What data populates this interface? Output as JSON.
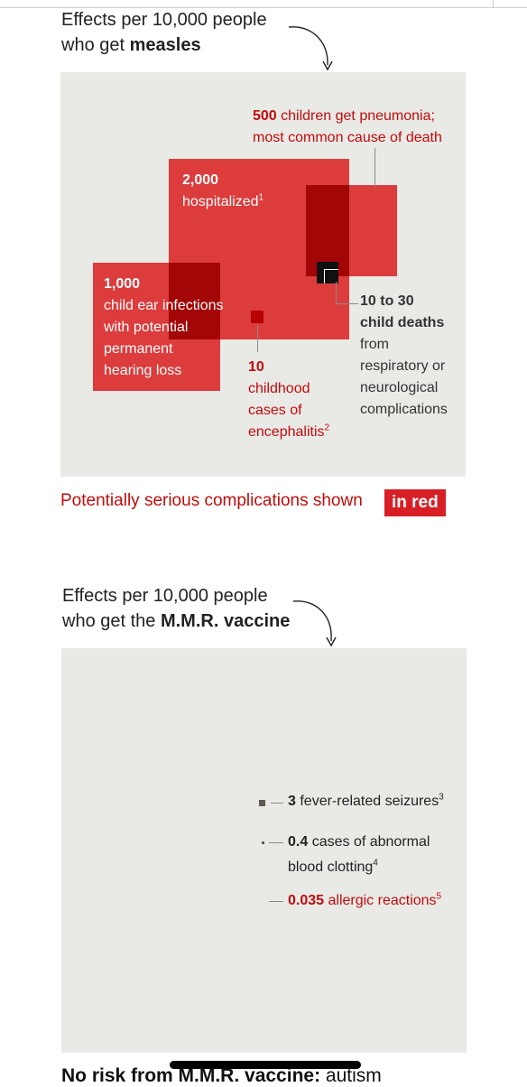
{
  "measles": {
    "heading_line1": "Effects per 10,000 people",
    "heading_line2_prefix": "who get ",
    "heading_line2_bold": "measles",
    "hospitalized": {
      "value": "2,000",
      "text": "hospitalized",
      "footnote": "1"
    },
    "pneumonia": {
      "value": "500",
      "text_line1": " children get pneumonia;",
      "text_line2": "most common cause of death"
    },
    "ear_infections": {
      "value": "1,000",
      "lines": [
        "child ear infections",
        "with potential",
        "permanent",
        "hearing loss"
      ]
    },
    "encephalitis": {
      "value": "10",
      "lines": [
        "childhood",
        "cases of",
        "encephalitis"
      ],
      "footnote": "2"
    },
    "deaths": {
      "value_line1": "10 to 30",
      "value_line2": "child deaths",
      "lines": [
        "from",
        "respiratory or",
        "neurological",
        "complications"
      ]
    },
    "legend_text": "Potentially serious complications shown",
    "legend_box": "in red"
  },
  "vaccine": {
    "heading_line1": "Effects per 10,000 people",
    "heading_line2_prefix": "who get the ",
    "heading_line2_bold": "M.M.R. vaccine",
    "seizures": {
      "value": "3",
      "text": " fever-related seizures",
      "footnote": "3"
    },
    "clotting": {
      "value": "0.4",
      "text_line1": " cases of abnormal",
      "text_line2": "blood clotting",
      "footnote": "4"
    },
    "allergic": {
      "value": "0.035",
      "text": " allergic reactions",
      "footnote": "5"
    }
  },
  "footer": {
    "bold": "No risk from M.M.R. vaccine:",
    "rest": " autism"
  },
  "chart_data": {
    "type": "area-proportional squares",
    "unit": "per 10,000 people",
    "groups": [
      {
        "name": "measles",
        "items": [
          {
            "label": "hospitalized",
            "value": 2000,
            "serious": true
          },
          {
            "label": "children get pneumonia",
            "value": 500,
            "serious": true
          },
          {
            "label": "child ear infections with potential permanent hearing loss",
            "value": 1000,
            "serious": true
          },
          {
            "label": "childhood cases of encephalitis",
            "value": 10,
            "serious": true
          },
          {
            "label": "child deaths from respiratory or neurological complications",
            "value": [
              10,
              30
            ],
            "serious": true
          }
        ]
      },
      {
        "name": "M.M.R. vaccine",
        "items": [
          {
            "label": "fever-related seizures",
            "value": 3,
            "serious": false
          },
          {
            "label": "cases of abnormal blood clotting",
            "value": 0.4,
            "serious": false
          },
          {
            "label": "allergic reactions",
            "value": 0.035,
            "serious": true
          }
        ]
      }
    ],
    "colors": {
      "serious": "#d81f26",
      "panel": "#e9e9e6",
      "other": "#5e5a52"
    }
  }
}
